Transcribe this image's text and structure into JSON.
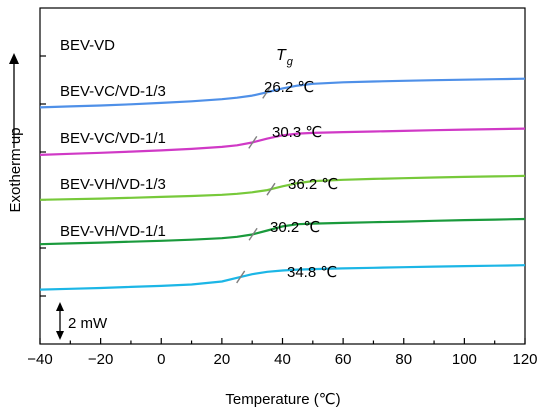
{
  "chart_data": {
    "type": "line",
    "xlabel": "Temperature (℃)",
    "ylabel": "Exotherm up",
    "xlim": [
      -40,
      120
    ],
    "x_ticks": [
      "−40",
      "−20",
      "0",
      "20",
      "40",
      "60",
      "80",
      "100",
      "120"
    ],
    "y_ticks_labeled": false,
    "y_tick_count": 6,
    "grid": false,
    "scale_bar": "2 mW",
    "annotation_header": {
      "main": "T",
      "sub": "g"
    },
    "x": [
      -40,
      -30,
      -20,
      -10,
      0,
      10,
      20,
      25,
      30,
      35,
      40,
      45,
      50,
      60,
      70,
      80,
      90,
      100,
      110,
      120
    ],
    "series": [
      {
        "name": "BEV-VD",
        "color": "#1cb6e6",
        "tg_label": "26.2 ℃",
        "tg_x": 26.2,
        "values": [
          289.6,
          288.8,
          288.0,
          286.9,
          285.9,
          284.5,
          281.5,
          277.8,
          274.2,
          271.8,
          270.5,
          269.6,
          269.1,
          268.4,
          267.8,
          267.2,
          266.6,
          266.1,
          265.7,
          265.2
        ]
      },
      {
        "name": "BEV-VC/VD-1/3",
        "color": "#1a9a3c",
        "tg_label": "30.3 ℃",
        "tg_x": 30.3,
        "values": [
          244.2,
          243.4,
          242.6,
          241.7,
          240.8,
          239.7,
          238.2,
          236.8,
          234.5,
          230.5,
          226.4,
          224.2,
          223.6,
          222.9,
          222.2,
          221.6,
          220.8,
          220.1,
          219.6,
          219.0
        ]
      },
      {
        "name": "BEV-VC/VD-1/1",
        "color": "#77c93a",
        "tg_label": "36.2 ℃",
        "tg_x": 36.2,
        "values": [
          199.8,
          199.2,
          198.6,
          197.8,
          196.9,
          196.0,
          194.8,
          193.8,
          192.3,
          190.1,
          186.3,
          183.1,
          181.1,
          179.8,
          178.9,
          178.2,
          177.5,
          176.9,
          176.4,
          175.9
        ]
      },
      {
        "name": "BEV-VH/VD-1/3",
        "color": "#d039c6",
        "tg_label": "30.2 ℃",
        "tg_x": 30.2,
        "values": [
          154.9,
          153.8,
          152.8,
          151.6,
          150.4,
          148.9,
          146.9,
          145.3,
          142.5,
          138.6,
          135.3,
          133.6,
          132.9,
          132.1,
          131.5,
          130.9,
          130.2,
          129.6,
          129.1,
          128.6
        ]
      },
      {
        "name": "BEV-VH/VD-1/1",
        "color": "#4f90e8",
        "tg_label": "34.8 ℃",
        "tg_x": 34.8,
        "values": [
          107.4,
          106.4,
          105.5,
          104.3,
          102.9,
          101.3,
          99.2,
          97.7,
          95.6,
          92.2,
          88.4,
          85.6,
          83.8,
          82.3,
          81.5,
          80.8,
          80.2,
          79.7,
          79.2,
          78.7
        ]
      }
    ]
  }
}
